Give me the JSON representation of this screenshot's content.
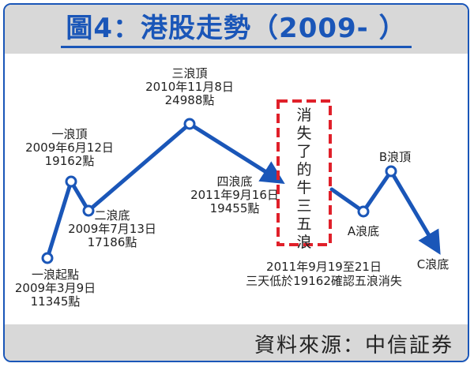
{
  "chart_data": {
    "type": "line",
    "title": "圖4：港股走勢（2009- ）",
    "source": "資料來源：中信証券",
    "points": [
      {
        "id": "p1",
        "lines": [
          "一浪起點",
          "2009年3月9日",
          "11345點"
        ],
        "date": "2009-03-09",
        "value": 11345
      },
      {
        "id": "p2",
        "lines": [
          "一浪頂",
          "2009年6月12日",
          "19162點"
        ],
        "date": "2009-06-12",
        "value": 19162
      },
      {
        "id": "p3",
        "lines": [
          "二浪底",
          "2009年7月13日",
          "17186點"
        ],
        "date": "2009-07-13",
        "value": 17186
      },
      {
        "id": "p4",
        "lines": [
          "三浪頂",
          "2010年11月8日",
          "24988點"
        ],
        "date": "2010-11-08",
        "value": 24988
      },
      {
        "id": "p5",
        "lines": [
          "四浪底",
          "2011年9月16日",
          "19455點"
        ],
        "date": "2011-09-16",
        "value": 19455
      },
      {
        "id": "p6",
        "lines": [
          "A浪底"
        ],
        "date": "",
        "value": null
      },
      {
        "id": "p7",
        "lines": [
          "B浪頂"
        ],
        "date": "",
        "value": null
      },
      {
        "id": "p8",
        "lines": [
          "C浪底"
        ],
        "date": "",
        "value": null
      }
    ],
    "callout_box": "消失了的牛三五浪",
    "annotation": [
      "2011年9月19至21日",
      "三天低於19162確認五浪消失"
    ],
    "colors": {
      "line": "#1a56b8",
      "callout": "#e0202a",
      "band": "#d8d8d8"
    }
  }
}
